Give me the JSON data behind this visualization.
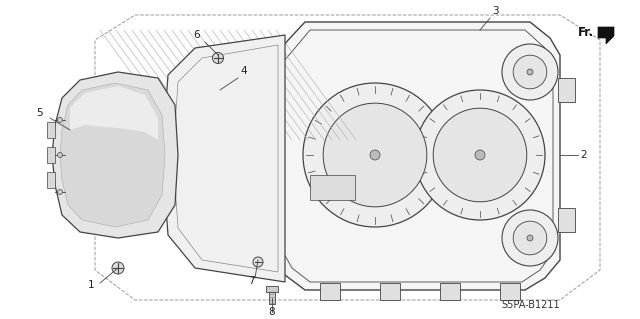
{
  "bg_color": "#ffffff",
  "line_color": "#444444",
  "gray_fill": "#e8e8e8",
  "light_fill": "#f2f2f2",
  "title_code": "S5PA-B1211",
  "figsize": [
    6.4,
    3.19
  ],
  "dpi": 100
}
